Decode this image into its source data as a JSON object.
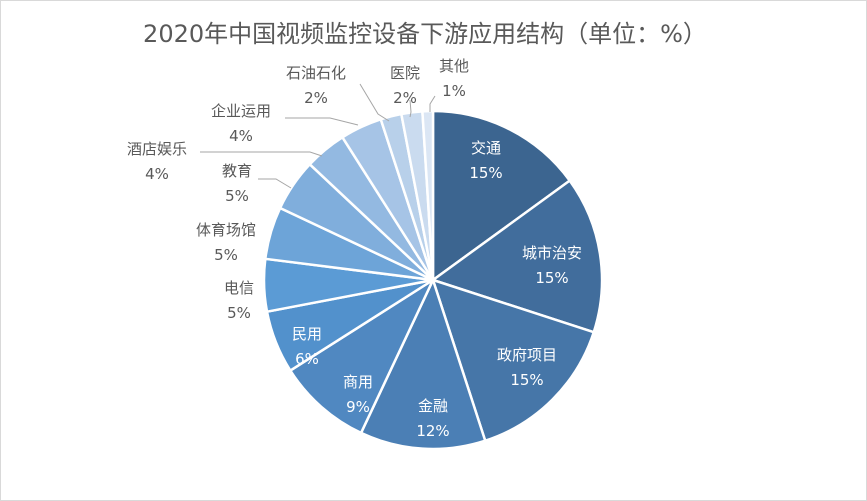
{
  "chart_data": {
    "type": "pie",
    "title": "2020年中国视频监控设备下游应用结构（单位：%）",
    "unit": "%",
    "slices": [
      {
        "label": "交通",
        "value": 15,
        "display": "15%",
        "color": "#3c6590"
      },
      {
        "label": "城市治安",
        "value": 15,
        "display": "15%",
        "color": "#416d9c"
      },
      {
        "label": "政府项目",
        "value": 15,
        "display": "15%",
        "color": "#4676a8"
      },
      {
        "label": "金融",
        "value": 12,
        "display": "12%",
        "color": "#4b7fb5"
      },
      {
        "label": "商用",
        "value": 9,
        "display": "9%",
        "color": "#5088c1"
      },
      {
        "label": "民用",
        "value": 6,
        "display": "6%",
        "color": "#5291cc"
      },
      {
        "label": "电信",
        "value": 5,
        "display": "5%",
        "color": "#5b9bd5"
      },
      {
        "label": "体育场馆",
        "value": 5,
        "display": "5%",
        "color": "#6da4d8"
      },
      {
        "label": "教育",
        "value": 5,
        "display": "5%",
        "color": "#80aedc"
      },
      {
        "label": "酒店娱乐",
        "value": 4,
        "display": "4%",
        "color": "#93b9e1"
      },
      {
        "label": "企业运用",
        "value": 4,
        "display": "4%",
        "color": "#a6c4e6"
      },
      {
        "label": "石油石化",
        "value": 2,
        "display": "2%",
        "color": "#b8d0ea"
      },
      {
        "label": "医院",
        "value": 2,
        "display": "2%",
        "color": "#cadbef"
      },
      {
        "label": "其他",
        "value": 1,
        "display": "1%",
        "color": "#dbe6f4"
      }
    ]
  }
}
